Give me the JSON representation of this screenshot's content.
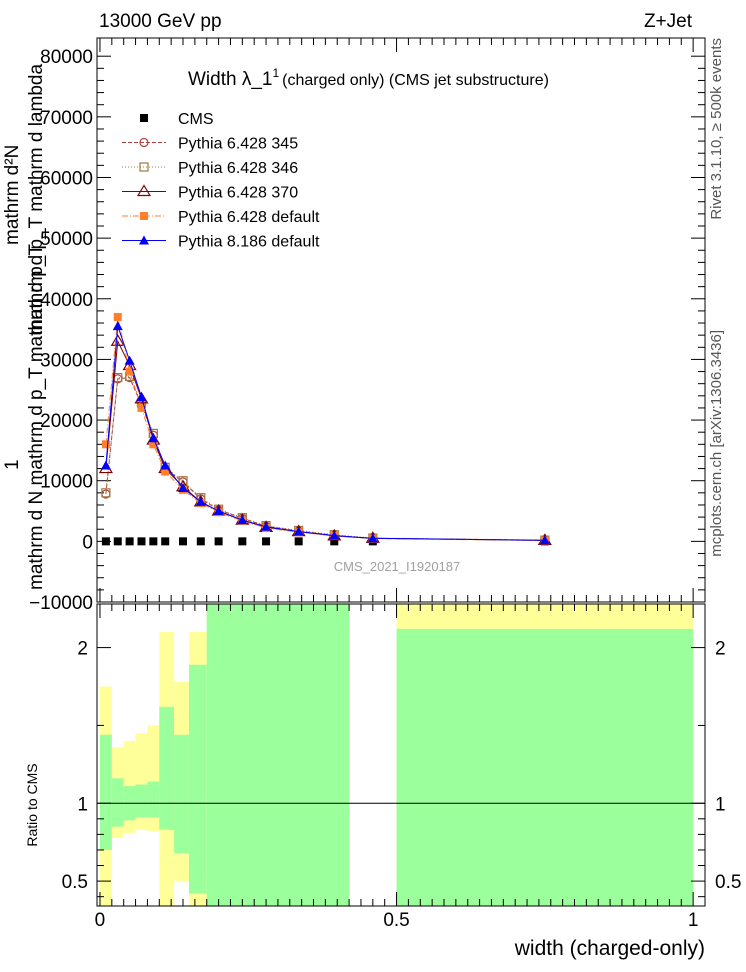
{
  "header": {
    "left": "13000 GeV pp",
    "right": "Z+Jet"
  },
  "side_labels": {
    "rivet": "Rivet 3.1.10, ≥ 500k events",
    "mcplots": "mcplots.cern.ch [arXiv:1306.3436]"
  },
  "colors": {
    "cms": "#000000",
    "py345": "#b04040",
    "py346": "#a07840",
    "py370": "#800000",
    "pydef": "#ff7f2a",
    "py8": "#0000ff",
    "band_inner": "#9bff9b",
    "band_outer": "#ffff99"
  },
  "chart_data": [
    {
      "type": "line",
      "title": "Width λ_1",
      "title_sup": "1",
      "subtitle": "(charged only) (CMS jet substructure)",
      "ylabel_lines": [
        "mathrm d²N",
        "mathrm d p_T mathrm d lambda",
        "1",
        "mathrm d N mathrm d p_T mathrm d p_T"
      ],
      "xlim": [
        -0.005,
        1.02
      ],
      "ylim": [
        -10000,
        83000
      ],
      "yticks": [
        -10000,
        0,
        10000,
        20000,
        30000,
        40000,
        50000,
        60000,
        70000,
        80000
      ],
      "ytick_labels": [
        "−10000",
        "0",
        "10000",
        "20000",
        "30000",
        "40000",
        "50000",
        "60000",
        "70000",
        "80000"
      ],
      "watermark": "CMS_2021_I1920187",
      "legend_position": "top-left",
      "x": [
        0.01,
        0.03,
        0.05,
        0.07,
        0.09,
        0.11,
        0.14,
        0.17,
        0.2,
        0.24,
        0.28,
        0.335,
        0.395,
        0.46,
        0.75
      ],
      "series": [
        {
          "name": "CMS",
          "marker": "filled-square",
          "color_key": "cms",
          "dash": "",
          "values": [
            0,
            0,
            0,
            0,
            0,
            0,
            0,
            0,
            0,
            0,
            0,
            0,
            0,
            0,
            0
          ]
        },
        {
          "name": "Pythia 6.428 345",
          "marker": "open-circle",
          "color_key": "py345",
          "dash": "4,2",
          "values": [
            7800,
            26800,
            27000,
            22500,
            17500,
            12000,
            9800,
            7000,
            5200,
            3800,
            2500,
            1700,
            1000,
            500,
            200
          ]
        },
        {
          "name": "Pythia 6.428 346",
          "marker": "open-square",
          "color_key": "py346",
          "dash": "1,2",
          "values": [
            8000,
            27000,
            27200,
            22800,
            17800,
            12200,
            10000,
            7200,
            5300,
            3900,
            2600,
            1800,
            1100,
            550,
            200
          ]
        },
        {
          "name": "Pythia 6.428 370",
          "marker": "open-triangle",
          "color_key": "py370",
          "dash": "",
          "values": [
            12000,
            33000,
            29000,
            23500,
            16700,
            12000,
            9000,
            6500,
            5000,
            3500,
            2300,
            1600,
            900,
            500,
            150
          ]
        },
        {
          "name": "Pythia 6.428 default",
          "marker": "filled-square",
          "color_key": "pydef",
          "dash": "6,2,1,2",
          "values": [
            16000,
            37000,
            28000,
            22000,
            16000,
            11500,
            8500,
            6300,
            4800,
            3400,
            2200,
            1500,
            900,
            450,
            150
          ]
        },
        {
          "name": "Pythia 8.186 default",
          "marker": "filled-triangle",
          "color_key": "py8",
          "dash": "",
          "values": [
            12500,
            35500,
            29800,
            23800,
            17000,
            12500,
            8800,
            6500,
            5000,
            3500,
            2400,
            1600,
            950,
            500,
            180
          ]
        }
      ]
    },
    {
      "type": "area",
      "ylabel": "Ratio to CMS",
      "xlabel": "width (charged-only)",
      "xlim": [
        -0.005,
        1.02
      ],
      "ylim": [
        0.34,
        2.28
      ],
      "yticks": [
        0.5,
        1,
        2
      ],
      "ytick_labels": [
        "0.5",
        "1",
        "2"
      ],
      "xticks": [
        0,
        0.5,
        1
      ],
      "xtick_labels": [
        "0",
        "0.5",
        "1"
      ],
      "reference_line": 1,
      "bands": [
        {
          "x0": 0.0,
          "x1": 0.02,
          "inner": [
            0.7,
            1.44
          ],
          "outer": [
            0.28,
            1.75
          ]
        },
        {
          "x0": 0.02,
          "x1": 0.04,
          "inner": [
            0.85,
            1.16
          ],
          "outer": [
            0.78,
            1.36
          ]
        },
        {
          "x0": 0.04,
          "x1": 0.06,
          "inner": [
            0.89,
            1.11
          ],
          "outer": [
            0.81,
            1.4
          ]
        },
        {
          "x0": 0.06,
          "x1": 0.08,
          "inner": [
            0.91,
            1.12
          ],
          "outer": [
            0.83,
            1.45
          ]
        },
        {
          "x0": 0.08,
          "x1": 0.1,
          "inner": [
            0.91,
            1.14
          ],
          "outer": [
            0.82,
            1.5
          ]
        },
        {
          "x0": 0.1,
          "x1": 0.125,
          "inner": [
            0.83,
            1.62
          ],
          "outer": [
            0.15,
            2.1
          ]
        },
        {
          "x0": 0.125,
          "x1": 0.15,
          "inner": [
            0.68,
            1.44
          ],
          "outer": [
            0.5,
            1.78
          ]
        },
        {
          "x0": 0.15,
          "x1": 0.18,
          "inner": [
            0.42,
            1.89
          ],
          "outer": [
            0.15,
            2.1
          ]
        },
        {
          "x0": 0.18,
          "x1": 0.42,
          "inner": [
            0.0,
            2.5
          ],
          "outer": [
            0.0,
            2.5
          ]
        },
        {
          "x0": 0.5,
          "x1": 1.0,
          "inner": [
            0.0,
            2.12
          ],
          "outer": [
            0.0,
            2.5
          ]
        }
      ]
    }
  ]
}
